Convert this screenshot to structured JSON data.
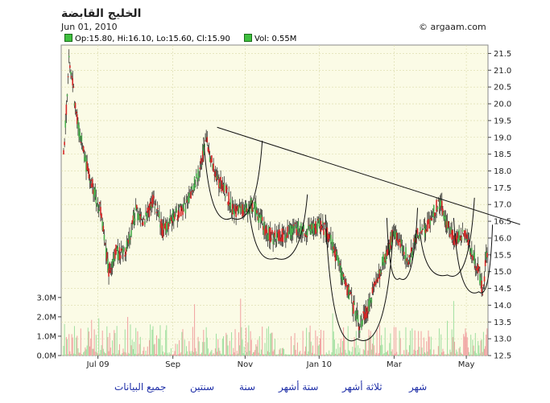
{
  "header": {
    "title": "الخليج القابضة",
    "date": "Jun 01, 2010",
    "credit": "© argaam.com"
  },
  "legend": {
    "ohlc": "Op:15.80, Hi:16.10, Lo:15.60, Cl:15.90",
    "volume": "Vol: 0.55M"
  },
  "colors": {
    "up": "#4caf50",
    "down": "#d62828",
    "volume": "#9fdf9f",
    "plot_bg": "#fbfbe6",
    "grid": "#d9d9a8",
    "links": "#1f2fa8"
  },
  "chart_data": {
    "type": "candlestick",
    "price_axis": {
      "min": 12.5,
      "max": 21.75,
      "ticks": [
        "12.5",
        "13.0",
        "13.5",
        "14.0",
        "14.5",
        "15.0",
        "15.5",
        "16.0",
        "16.5",
        "17.0",
        "17.5",
        "18.0",
        "18.5",
        "19.0",
        "19.5",
        "20.0",
        "20.5",
        "21.0",
        "21.5"
      ]
    },
    "volume_axis": {
      "min": 0,
      "max": 3.2,
      "ticks": [
        {
          "label": "0.0M",
          "value": 0
        },
        {
          "label": "1.0M",
          "value": 1
        },
        {
          "label": "2.0M",
          "value": 2
        },
        {
          "label": "3.0M",
          "value": 3
        }
      ]
    },
    "x_axis": {
      "ticks": [
        {
          "label": "Jul 09",
          "index": 38
        },
        {
          "label": "Sep",
          "index": 121
        },
        {
          "label": "Nov",
          "index": 201
        },
        {
          "label": "Jan 10",
          "index": 283
        },
        {
          "label": "Mar",
          "index": 366
        },
        {
          "label": "May",
          "index": 446
        }
      ],
      "bars": 470
    },
    "price_path": [
      [
        0,
        18.5
      ],
      [
        6,
        21.2
      ],
      [
        10,
        20.6
      ],
      [
        15,
        19.5
      ],
      [
        25,
        18.2
      ],
      [
        40,
        16.9
      ],
      [
        50,
        15.0
      ],
      [
        58,
        15.6
      ],
      [
        68,
        15.5
      ],
      [
        80,
        16.8
      ],
      [
        90,
        16.5
      ],
      [
        100,
        17.2
      ],
      [
        110,
        16.2
      ],
      [
        120,
        16.6
      ],
      [
        135,
        16.9
      ],
      [
        150,
        18.0
      ],
      [
        158,
        18.9
      ],
      [
        168,
        17.8
      ],
      [
        178,
        17.5
      ],
      [
        188,
        16.8
      ],
      [
        198,
        16.8
      ],
      [
        210,
        17.0
      ],
      [
        222,
        16.3
      ],
      [
        232,
        16.0
      ],
      [
        246,
        16.1
      ],
      [
        258,
        16.3
      ],
      [
        270,
        16.2
      ],
      [
        285,
        16.4
      ],
      [
        295,
        16.0
      ],
      [
        305,
        15.2
      ],
      [
        318,
        14.2
      ],
      [
        328,
        13.4
      ],
      [
        336,
        13.8
      ],
      [
        344,
        14.5
      ],
      [
        355,
        15.4
      ],
      [
        365,
        16.1
      ],
      [
        375,
        15.8
      ],
      [
        382,
        15.3
      ],
      [
        392,
        16.1
      ],
      [
        400,
        16.2
      ],
      [
        410,
        16.8
      ],
      [
        418,
        17.1
      ],
      [
        424,
        16.4
      ],
      [
        434,
        15.9
      ],
      [
        442,
        16.2
      ],
      [
        452,
        15.6
      ],
      [
        460,
        15.0
      ],
      [
        464,
        14.4
      ],
      [
        470,
        15.9
      ]
    ],
    "annotations": {
      "trendline": [
        [
          170,
          19.3
        ],
        [
          470,
          16.5
        ]
      ],
      "arcs": [
        {
          "from": [
            155,
            19.0
          ],
          "bottom": [
            186,
            16.6
          ],
          "to": [
            220,
            18.9
          ]
        },
        {
          "from": [
            205,
            17.0
          ],
          "bottom": [
            235,
            15.4
          ],
          "to": [
            270,
            17.3
          ]
        },
        {
          "from": [
            290,
            16.7
          ],
          "bottom": [
            325,
            13.0
          ],
          "to": [
            365,
            16.2
          ]
        },
        {
          "from": [
            358,
            16.6
          ],
          "bottom": [
            372,
            14.8
          ],
          "to": [
            392,
            16.9
          ]
        },
        {
          "from": [
            395,
            16.1
          ],
          "bottom": [
            425,
            14.9
          ],
          "to": [
            455,
            17.2
          ]
        },
        {
          "from": [
            432,
            16.6
          ],
          "bottom": [
            460,
            14.4
          ],
          "to": [
            475,
            16.4
          ]
        }
      ]
    }
  },
  "links": [
    "شهر",
    "ثلاثة أشهر",
    "ستة أشهر",
    "سنة",
    "سنتين",
    "جميع البيانات"
  ]
}
